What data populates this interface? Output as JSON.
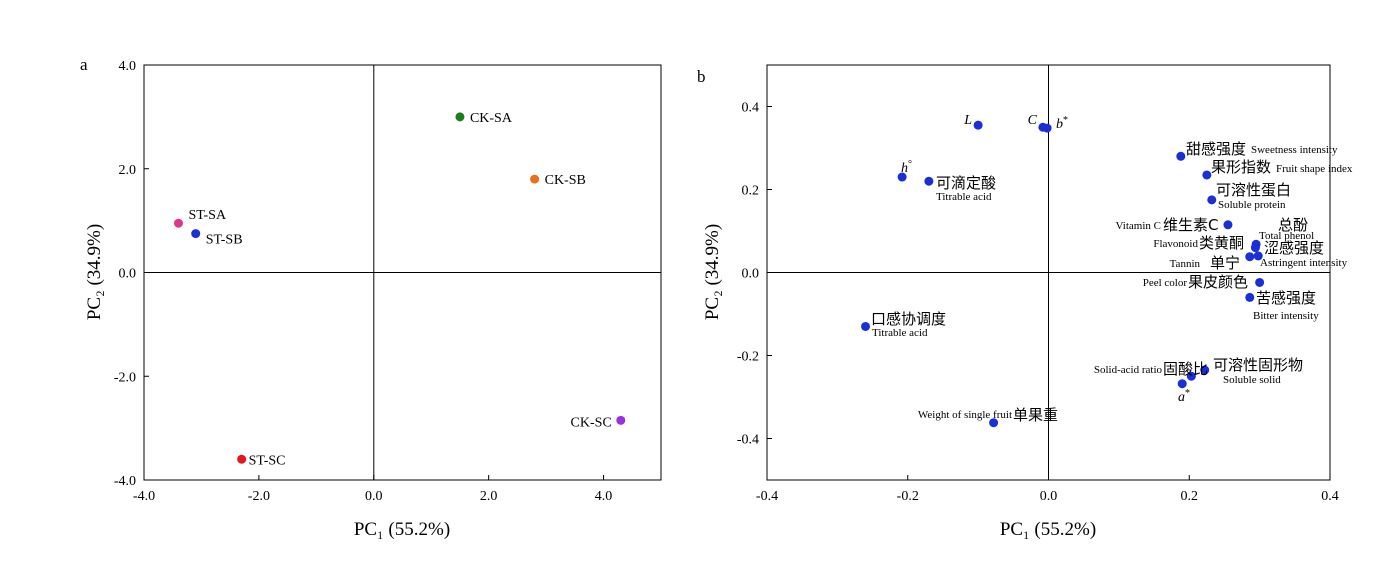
{
  "chart_data": [
    {
      "panel": "a",
      "type": "scatter",
      "xlabel": "PC₁ (55.2%)",
      "ylabel": "PC₂ (34.9%)",
      "xlim": [
        -4,
        5
      ],
      "ylim": [
        -4,
        4
      ],
      "xticks": [
        "-4.0",
        "-2.0",
        "0.0",
        "2.0",
        "4.0"
      ],
      "yticks": [
        "4.0",
        "2.0",
        "0.0",
        "-2.0",
        "-4.0"
      ],
      "grid": false,
      "points": [
        {
          "label": "CK-SA",
          "x": 1.5,
          "y": 3.0,
          "color": "#1a7f1a"
        },
        {
          "label": "CK-SB",
          "x": 2.8,
          "y": 1.8,
          "color": "#e8701c"
        },
        {
          "label": "ST-SA",
          "x": -3.4,
          "y": 0.95,
          "color": "#e0358a"
        },
        {
          "label": "ST-SB",
          "x": -3.1,
          "y": 0.75,
          "color": "#1a2fd9"
        },
        {
          "label": "CK-SC",
          "x": 4.3,
          "y": -2.85,
          "color": "#9b30e0"
        },
        {
          "label": "ST-SC",
          "x": -2.3,
          "y": -3.6,
          "color": "#e8141c"
        }
      ]
    },
    {
      "panel": "b",
      "type": "scatter",
      "xlabel": "PC₁ (55.2%)",
      "ylabel": "PC₂ (34.9%)",
      "xlim": [
        -0.4,
        0.4
      ],
      "ylim": [
        -0.5,
        0.5
      ],
      "xticks": [
        "-0.4",
        "-0.2",
        "0.0",
        "0.2",
        "0.4"
      ],
      "yticks": [
        "0.4",
        "0.2",
        "0.0",
        "-0.2",
        "-0.4"
      ],
      "grid": false,
      "point_color": "#1a2fd9",
      "points": [
        {
          "x": -0.1,
          "y": 0.355,
          "zh": "",
          "en": "",
          "sym": "L",
          "sym_sup": ""
        },
        {
          "x": -0.008,
          "y": 0.35,
          "zh": "",
          "en": "",
          "sym": "C",
          "sym_sup": ""
        },
        {
          "x": -0.002,
          "y": 0.348,
          "zh": "",
          "en": "",
          "sym": "b",
          "sym_sup": "*"
        },
        {
          "x": -0.208,
          "y": 0.23,
          "zh": "",
          "en": "",
          "sym": "h",
          "sym_sup": "°"
        },
        {
          "x": -0.17,
          "y": 0.22,
          "zh": "可滴定酸",
          "en": "Titrable acid",
          "sym": "",
          "sym_sup": ""
        },
        {
          "x": 0.188,
          "y": 0.28,
          "zh": "甜感强度",
          "en": "Sweetness intensity",
          "sym": "",
          "sym_sup": ""
        },
        {
          "x": 0.225,
          "y": 0.235,
          "zh": "果形指数",
          "en": "Fruit shape index",
          "sym": "",
          "sym_sup": ""
        },
        {
          "x": 0.232,
          "y": 0.175,
          "zh": "可溶性蛋白",
          "en": "Soluble protein",
          "sym": "",
          "sym_sup": ""
        },
        {
          "x": 0.255,
          "y": 0.115,
          "zh": "维生素C",
          "en": "Vitamin C",
          "sym": "",
          "sym_sup": ""
        },
        {
          "x": 0.295,
          "y": 0.068,
          "zh": "总酚",
          "en": "Total phenol",
          "sym": "",
          "sym_sup": ""
        },
        {
          "x": 0.294,
          "y": 0.06,
          "zh": "类黄酮",
          "en": "Flavonoid",
          "sym": "",
          "sym_sup": ""
        },
        {
          "x": 0.286,
          "y": 0.038,
          "zh": "单宁",
          "en": "Tannin",
          "sym": "",
          "sym_sup": ""
        },
        {
          "x": 0.298,
          "y": 0.04,
          "zh": "涩感强度",
          "en": "Astringent intensity",
          "sym": "",
          "sym_sup": ""
        },
        {
          "x": 0.3,
          "y": -0.024,
          "zh": "果皮颜色",
          "en": "Peel color",
          "sym": "",
          "sym_sup": ""
        },
        {
          "x": 0.286,
          "y": -0.06,
          "zh": "苦感强度",
          "en": "Bitter intensity",
          "sym": "",
          "sym_sup": ""
        },
        {
          "x": -0.26,
          "y": -0.13,
          "zh": "口感协调度",
          "en": "Titrable acid",
          "sym": "",
          "sym_sup": ""
        },
        {
          "x": 0.222,
          "y": -0.235,
          "zh": "可溶性固形物",
          "en": "Soluble solid",
          "sym": "",
          "sym_sup": ""
        },
        {
          "x": 0.203,
          "y": -0.25,
          "zh": "固酸比",
          "en": "Solid-acid ratio",
          "sym": "",
          "sym_sup": ""
        },
        {
          "x": 0.19,
          "y": -0.268,
          "zh": "",
          "en": "",
          "sym": "a",
          "sym_sup": "*"
        },
        {
          "x": -0.078,
          "y": -0.362,
          "zh": "单果重",
          "en": "Weight of single fruit",
          "sym": "",
          "sym_sup": ""
        }
      ]
    }
  ]
}
